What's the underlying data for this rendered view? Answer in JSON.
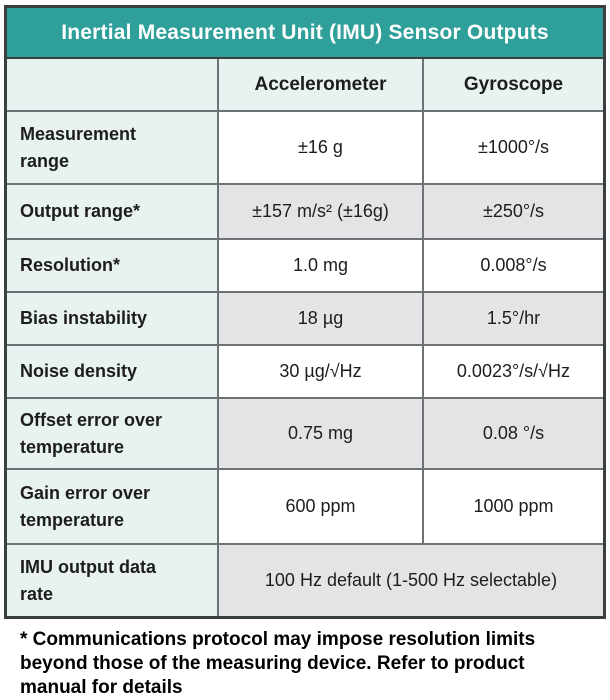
{
  "chart_data": {
    "type": "table",
    "title": "Inertial Measurement Unit (IMU) Sensor Outputs",
    "columns": [
      "Accelerometer",
      "Gyroscope"
    ],
    "rows": [
      {
        "label": "Measurement range",
        "accelerometer": "±16 g",
        "gyroscope": "±1000°/s"
      },
      {
        "label": "Output range*",
        "accelerometer": "±157 m/s² (±16g)",
        "gyroscope": "±250°/s"
      },
      {
        "label": "Resolution*",
        "accelerometer": "1.0 mg",
        "gyroscope": "0.008°/s"
      },
      {
        "label": "Bias instability",
        "accelerometer": "18 µg",
        "gyroscope": "1.5°/hr"
      },
      {
        "label": "Noise density",
        "accelerometer": "30 µg/√Hz",
        "gyroscope": "0.0023°/s/√Hz"
      },
      {
        "label": "Offset error over temperature",
        "accelerometer": "0.75 mg",
        "gyroscope": "0.08 °/s"
      },
      {
        "label": "Gain error over temperature",
        "accelerometer": "600 ppm",
        "gyroscope": "1000 ppm"
      },
      {
        "label": "IMU output data rate",
        "merged_value": "100 Hz default (1-500 Hz selectable)"
      }
    ],
    "footnote": "* Communications protocol may impose resolution limits beyond those of the measuring device. Refer to product manual for details",
    "layout_hints": {
      "row_shading_order": [
        "white",
        "gray",
        "white",
        "gray",
        "white",
        "gray",
        "white",
        "gray"
      ],
      "last_row_spans_both_value_columns": true
    }
  },
  "colors": {
    "header_teal": "#2f9f9a",
    "light_teal": "#e8f3f1",
    "alt_row_gray": "#e4e4e6",
    "grid_line": "#6d7374",
    "outer_border": "#3a4041",
    "title_text": "#ffffff",
    "body_text": "#1d1d1d"
  }
}
